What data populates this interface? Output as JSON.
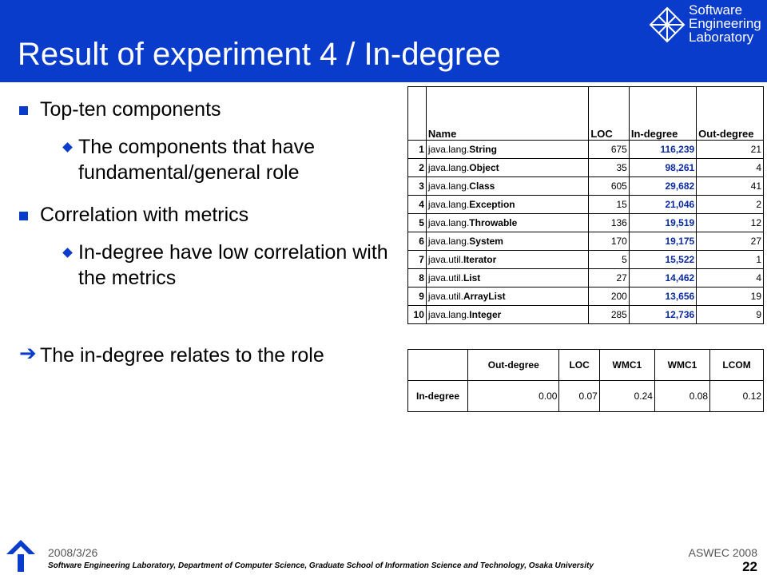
{
  "header": {
    "title": "Result of experiment 4 / In-degree",
    "logo": [
      "Software",
      "Engineering",
      "Laboratory"
    ]
  },
  "bullets": [
    {
      "level": 1,
      "text": "Top-ten components"
    },
    {
      "level": 2,
      "text": "The components that have fundamental/general role"
    },
    {
      "level": 1,
      "text": "Correlation with metrics"
    },
    {
      "level": 2,
      "text": "In-degree have low correlation with the metrics"
    },
    {
      "level": 0,
      "text": "The in-degree relates to the role"
    }
  ],
  "table": {
    "header": [
      "Name",
      "LOC",
      "In-degree",
      "Out-degree"
    ],
    "rows": [
      [
        "1",
        "java.lang.",
        "String",
        "675",
        "116,239",
        "21"
      ],
      [
        "2",
        "java.lang.",
        "Object",
        "35",
        "98,261",
        "4"
      ],
      [
        "3",
        "java.lang.",
        "Class",
        "605",
        "29,682",
        "41"
      ],
      [
        "4",
        "java.lang.",
        "Exception",
        "15",
        "21,046",
        "2"
      ],
      [
        "5",
        "java.lang.",
        "Throwable",
        "136",
        "19,519",
        "12"
      ],
      [
        "6",
        "java.lang.",
        "System",
        "170",
        "19,175",
        "27"
      ],
      [
        "7",
        "java.util.",
        "Iterator",
        "5",
        "15,522",
        "1"
      ],
      [
        "8",
        "java.util.",
        "List",
        "27",
        "14,462",
        "4"
      ],
      [
        "9",
        "java.util.",
        "ArrayList",
        "200",
        "13,656",
        "19"
      ],
      [
        "10",
        "java.lang.",
        "Integer",
        "285",
        "12,736",
        "9"
      ]
    ]
  },
  "correlation": {
    "header": [
      "Out-degree",
      "LOC",
      "WMC1",
      "WMC1",
      "LCOM"
    ],
    "row_label": "In-degree",
    "values": [
      "0.00",
      "0.07",
      "0.24",
      "0.08",
      "0.12"
    ]
  },
  "footer": {
    "date": "2008/3/26",
    "event": "ASWEC 2008",
    "affiliation": "Software Engineering Laboratory, Department of Computer Science, Graduate School of Information Science and Technology, Osaka University",
    "page": "22"
  }
}
